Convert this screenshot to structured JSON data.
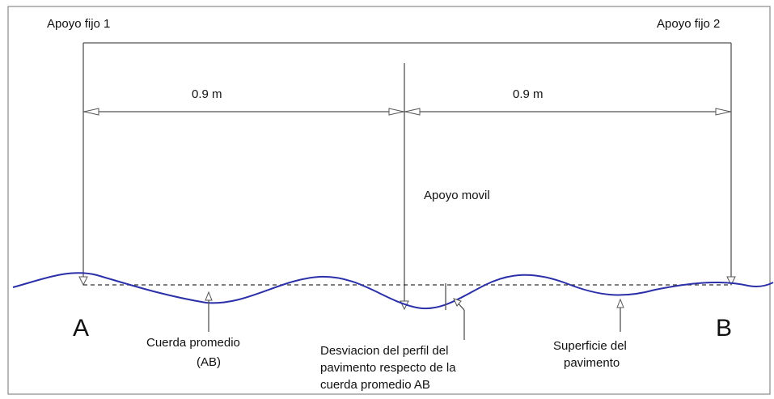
{
  "labels": {
    "support_fixed_1": "Apoyo fijo 1",
    "support_fixed_2": "Apoyo fijo 2",
    "support_mobile": "Apoyo movil",
    "span_left": "0.9 m",
    "span_right": "0.9 m",
    "point_a": "A",
    "point_b": "B",
    "chord_line1": "Cuerda promedio",
    "chord_line2": "(AB)",
    "deviation_line1": "Desviacion del perfil del",
    "deviation_line2": "pavimento respecto de la",
    "deviation_line3": "cuerda promedio AB",
    "surface_line1": "Superficie del",
    "surface_line2": "pavimento"
  },
  "colors": {
    "surface": "#2b2fa8",
    "lines": "#555555",
    "frame": "#888888"
  }
}
